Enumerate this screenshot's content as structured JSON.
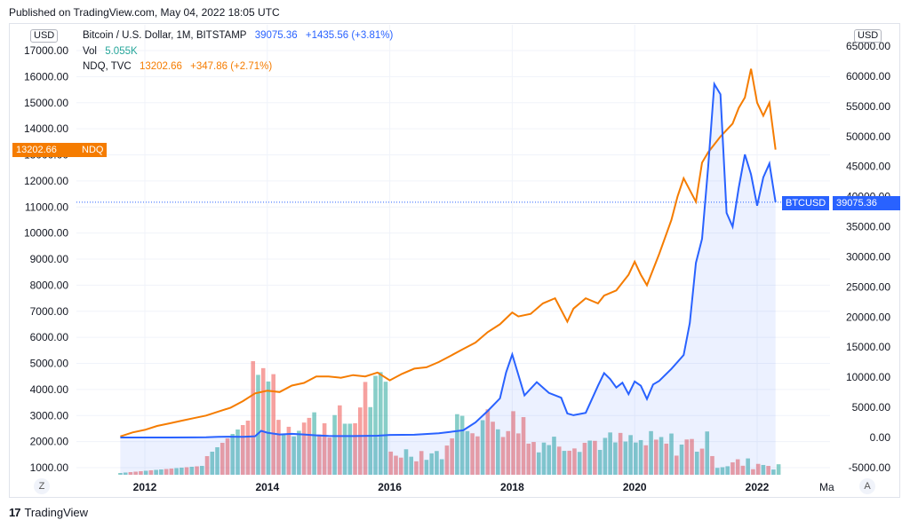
{
  "header": {
    "published": "Published on TradingView.com, May 04, 2022 18:05 UTC"
  },
  "legend": {
    "btc": {
      "name": "Bitcoin / U.S. Dollar, 1M, BITSTAMP",
      "price": "39075.36",
      "change": "+1435.56 (+3.81%)"
    },
    "vol": {
      "name": "Vol",
      "value": "5.055K"
    },
    "ndq": {
      "name": "NDQ, TVC",
      "price": "13202.66",
      "change": "+347.86 (+2.71%)"
    }
  },
  "axes": {
    "left_currency": "USD",
    "right_currency": "USD",
    "left_tag": {
      "value": "13202.66",
      "label": "NDQ"
    },
    "right_tag": {
      "label": "BTCUSD",
      "value": "39075.36"
    },
    "corner_left": "Z",
    "corner_right": "A",
    "x_truncated": "Ma"
  },
  "footer": {
    "brand": "TradingView"
  },
  "colors": {
    "btc": "#2962ff",
    "ndq": "#f57c00",
    "vol_up": "#26a69a",
    "vol_down": "#ef5350"
  },
  "chart_data": {
    "type": "line",
    "title": "Bitcoin / U.S. Dollar (BITSTAMP, 1M) vs NDQ (TVC)",
    "x_ticks": [
      "2012",
      "2014",
      "2016",
      "2018",
      "2020",
      "2022"
    ],
    "left_axis": {
      "ticks": [
        "1000.00",
        "2000.00",
        "3000.00",
        "4000.00",
        "5000.00",
        "6000.00",
        "7000.00",
        "8000.00",
        "9000.00",
        "10000.00",
        "11000.00",
        "12000.00",
        "13000.00",
        "14000.00",
        "15000.00",
        "16000.00",
        "17000.00"
      ],
      "range": [
        900,
        17400
      ]
    },
    "right_axis": {
      "ticks": [
        "-5000.00",
        "0.00",
        "5000.00",
        "10000.00",
        "15000.00",
        "20000.00",
        "25000.00",
        "30000.00",
        "35000.00",
        "40000.00",
        "45000.00",
        "50000.00",
        "55000.00",
        "60000.00",
        "65000.00"
      ],
      "range": [
        -5500,
        66500
      ]
    },
    "series": [
      {
        "name": "NDQ",
        "axis": "left",
        "x": [
          2011.6,
          2011.8,
          2012.0,
          2012.2,
          2012.4,
          2012.6,
          2012.8,
          2013.0,
          2013.2,
          2013.4,
          2013.6,
          2013.8,
          2014.0,
          2014.2,
          2014.4,
          2014.6,
          2014.8,
          2015.0,
          2015.2,
          2015.4,
          2015.6,
          2015.8,
          2016.0,
          2016.2,
          2016.4,
          2016.6,
          2016.8,
          2017.0,
          2017.2,
          2017.4,
          2017.6,
          2017.8,
          2018.0,
          2018.1,
          2018.3,
          2018.5,
          2018.7,
          2018.9,
          2019.0,
          2019.2,
          2019.4,
          2019.5,
          2019.7,
          2019.9,
          2020.0,
          2020.1,
          2020.2,
          2020.4,
          2020.6,
          2020.7,
          2020.8,
          2021.0,
          2021.1,
          2021.2,
          2021.4,
          2021.6,
          2021.7,
          2021.8,
          2021.9,
          2022.0,
          2022.1,
          2022.2,
          2022.3
        ],
        "values": [
          2200,
          2350,
          2450,
          2600,
          2700,
          2800,
          2900,
          3000,
          3150,
          3300,
          3550,
          3850,
          3950,
          3900,
          4150,
          4250,
          4500,
          4500,
          4450,
          4550,
          4500,
          4650,
          4350,
          4600,
          4800,
          4850,
          5050,
          5300,
          5550,
          5800,
          6200,
          6500,
          6950,
          6800,
          6900,
          7300,
          7500,
          6600,
          7100,
          7500,
          7300,
          7600,
          7800,
          8400,
          8900,
          8400,
          8000,
          9200,
          10500,
          11400,
          12100,
          11200,
          12700,
          13100,
          13700,
          14200,
          14800,
          15200,
          16300,
          15000,
          14500,
          15000,
          13200
        ]
      },
      {
        "name": "BTCUSD",
        "axis": "right",
        "x": [
          2011.6,
          2012.0,
          2012.4,
          2012.8,
          2013.0,
          2013.2,
          2013.4,
          2013.6,
          2013.8,
          2013.9,
          2014.0,
          2014.2,
          2014.4,
          2014.6,
          2014.8,
          2015.0,
          2015.4,
          2015.8,
          2016.0,
          2016.4,
          2016.8,
          2017.0,
          2017.2,
          2017.4,
          2017.6,
          2017.8,
          2017.9,
          2018.0,
          2018.1,
          2018.2,
          2018.4,
          2018.6,
          2018.8,
          2018.9,
          2019.0,
          2019.2,
          2019.4,
          2019.5,
          2019.6,
          2019.7,
          2019.8,
          2019.9,
          2020.0,
          2020.1,
          2020.2,
          2020.3,
          2020.4,
          2020.6,
          2020.8,
          2020.9,
          2021.0,
          2021.1,
          2021.2,
          2021.3,
          2021.4,
          2021.5,
          2021.6,
          2021.7,
          2021.8,
          2021.9,
          2022.0,
          2022.1,
          2022.2,
          2022.3
        ],
        "values": [
          0,
          0,
          0,
          10,
          30,
          100,
          130,
          100,
          200,
          1100,
          800,
          500,
          600,
          500,
          350,
          250,
          230,
          300,
          430,
          450,
          700,
          950,
          1200,
          2500,
          4400,
          6500,
          10800,
          13800,
          10400,
          7000,
          9200,
          7400,
          6600,
          4000,
          3700,
          4100,
          8600,
          10700,
          9700,
          8300,
          9100,
          7200,
          9300,
          8600,
          6400,
          8800,
          9400,
          11400,
          13700,
          19000,
          29000,
          33000,
          45000,
          58700,
          57000,
          37300,
          35000,
          41500,
          47000,
          43700,
          38500,
          43200,
          45500,
          39075
        ]
      }
    ]
  }
}
